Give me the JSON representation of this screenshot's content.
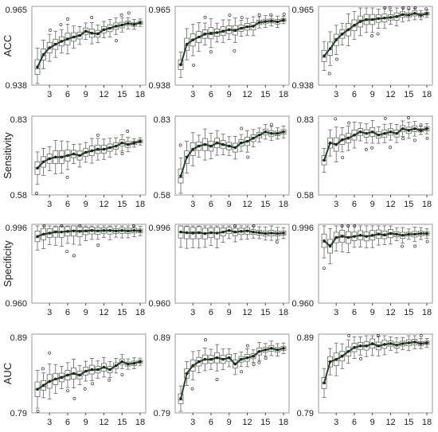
{
  "figure": {
    "colors": {
      "mean_line": "#1f4a1f",
      "mean_point": "#0f2e0f",
      "box": "#666666",
      "frame": "#9a9a9a",
      "outlier": "#333333",
      "median_accent": "#c0392b"
    },
    "rows": [
      {
        "metric": "ACC",
        "y_ticks": [
          "0.965",
          "0.938"
        ],
        "ylim": [
          0.938,
          0.965
        ]
      },
      {
        "metric": "Sensitivity",
        "y_ticks": [
          "0.83",
          "0.58"
        ],
        "ylim": [
          0.58,
          0.83
        ]
      },
      {
        "metric": "Specificity",
        "y_ticks": [
          "0.996",
          "0.960"
        ],
        "ylim": [
          0.96,
          0.996
        ]
      },
      {
        "metric": "AUC",
        "y_ticks": [
          "0.89",
          "0.79"
        ],
        "ylim": [
          0.79,
          0.89
        ]
      }
    ],
    "x_ticks": [
      "3",
      "6",
      "9",
      "12",
      "15",
      "18"
    ]
  },
  "chart_data": [
    {
      "type": "box",
      "row": 0,
      "col": 0,
      "ylabel": "ACC",
      "x": [
        1,
        2,
        3,
        4,
        5,
        6,
        7,
        8,
        9,
        10,
        11,
        12,
        13,
        14,
        15,
        16,
        17,
        18
      ],
      "ylim": [
        0.938,
        0.965
      ],
      "mean": [
        0.9442,
        0.9485,
        0.9508,
        0.952,
        0.953,
        0.9538,
        0.9545,
        0.955,
        0.9565,
        0.9558,
        0.9556,
        0.957,
        0.9575,
        0.9582,
        0.9586,
        0.9592,
        0.9588,
        0.9594
      ]
    },
    {
      "type": "box",
      "row": 0,
      "col": 1,
      "ylabel": "",
      "x": [
        1,
        2,
        3,
        4,
        5,
        6,
        7,
        8,
        9,
        10,
        11,
        12,
        13,
        14,
        15,
        16,
        17,
        18
      ],
      "ylim": [
        0.938,
        0.965
      ],
      "mean": [
        0.945,
        0.952,
        0.9535,
        0.9545,
        0.9555,
        0.9558,
        0.956,
        0.9565,
        0.957,
        0.9568,
        0.9575,
        0.958,
        0.9582,
        0.9595,
        0.9598,
        0.96,
        0.9597,
        0.9603
      ]
    },
    {
      "type": "box",
      "row": 0,
      "col": 2,
      "ylabel": "",
      "x": [
        1,
        2,
        3,
        4,
        5,
        6,
        7,
        8,
        9,
        10,
        11,
        12,
        13,
        14,
        15,
        16,
        17,
        18
      ],
      "ylim": [
        0.938,
        0.965
      ],
      "mean": [
        0.948,
        0.9505,
        0.9535,
        0.9555,
        0.957,
        0.9585,
        0.9598,
        0.9605,
        0.9605,
        0.9608,
        0.961,
        0.9612,
        0.9615,
        0.9622,
        0.962,
        0.9626,
        0.962,
        0.9625
      ]
    },
    {
      "type": "box",
      "row": 1,
      "col": 0,
      "ylabel": "Sensitivity",
      "x": [
        1,
        2,
        3,
        4,
        5,
        6,
        7,
        8,
        9,
        10,
        11,
        12,
        13,
        14,
        15,
        16,
        17,
        18
      ],
      "ylim": [
        0.58,
        0.83
      ],
      "mean": [
        0.665,
        0.685,
        0.695,
        0.7,
        0.7,
        0.705,
        0.71,
        0.705,
        0.715,
        0.72,
        0.725,
        0.725,
        0.73,
        0.735,
        0.745,
        0.74,
        0.745,
        0.75
      ]
    },
    {
      "type": "box",
      "row": 1,
      "col": 1,
      "ylabel": "",
      "x": [
        1,
        2,
        3,
        4,
        5,
        6,
        7,
        8,
        9,
        10,
        11,
        12,
        13,
        14,
        15,
        16,
        17,
        18
      ],
      "ylim": [
        0.58,
        0.83
      ],
      "mean": [
        0.64,
        0.7,
        0.725,
        0.735,
        0.74,
        0.735,
        0.745,
        0.74,
        0.735,
        0.73,
        0.745,
        0.75,
        0.76,
        0.77,
        0.78,
        0.775,
        0.775,
        0.78
      ]
    },
    {
      "type": "box",
      "row": 1,
      "col": 2,
      "ylabel": "",
      "x": [
        1,
        2,
        3,
        4,
        5,
        6,
        7,
        8,
        9,
        10,
        11,
        12,
        13,
        14,
        15,
        16,
        17,
        18
      ],
      "ylim": [
        0.58,
        0.83
      ],
      "mean": [
        0.69,
        0.745,
        0.74,
        0.755,
        0.76,
        0.77,
        0.78,
        0.775,
        0.78,
        0.77,
        0.775,
        0.78,
        0.775,
        0.79,
        0.785,
        0.79,
        0.785,
        0.79
      ]
    },
    {
      "type": "box",
      "row": 2,
      "col": 0,
      "ylabel": "Specificity",
      "x": [
        1,
        2,
        3,
        4,
        5,
        6,
        7,
        8,
        9,
        10,
        11,
        12,
        13,
        14,
        15,
        16,
        17,
        18
      ],
      "ylim": [
        0.96,
        0.996
      ],
      "mean": [
        0.9905,
        0.9915,
        0.992,
        0.9925,
        0.9925,
        0.9928,
        0.993,
        0.9928,
        0.993,
        0.9932,
        0.993,
        0.9932,
        0.9932,
        0.993,
        0.9932,
        0.993,
        0.9932,
        0.993
      ]
    },
    {
      "type": "box",
      "row": 2,
      "col": 1,
      "ylabel": "",
      "x": [
        1,
        2,
        3,
        4,
        5,
        6,
        7,
        8,
        9,
        10,
        11,
        12,
        13,
        14,
        15,
        16,
        17,
        18
      ],
      "ylim": [
        0.96,
        0.996
      ],
      "mean": [
        0.9925,
        0.9922,
        0.992,
        0.9922,
        0.9918,
        0.9922,
        0.992,
        0.9925,
        0.9932,
        0.9925,
        0.9928,
        0.993,
        0.9925,
        0.9922,
        0.9918,
        0.992,
        0.9918,
        0.992
      ]
    },
    {
      "type": "box",
      "row": 2,
      "col": 2,
      "ylabel": "",
      "x": [
        1,
        2,
        3,
        4,
        5,
        6,
        7,
        8,
        9,
        10,
        11,
        12,
        13,
        14,
        15,
        16,
        17,
        18
      ],
      "ylim": [
        0.96,
        0.996
      ],
      "mean": [
        0.9885,
        0.986,
        0.99,
        0.9905,
        0.99,
        0.9905,
        0.991,
        0.9905,
        0.991,
        0.9915,
        0.9912,
        0.9918,
        0.9915,
        0.991,
        0.9915,
        0.9915,
        0.9918,
        0.9918
      ]
    },
    {
      "type": "box",
      "row": 3,
      "col": 0,
      "ylabel": "AUC",
      "x": [
        1,
        2,
        3,
        4,
        5,
        6,
        7,
        8,
        9,
        10,
        11,
        12,
        13,
        14,
        15,
        16,
        17,
        18
      ],
      "ylim": [
        0.79,
        0.89
      ],
      "mean": [
        0.82,
        0.825,
        0.83,
        0.833,
        0.835,
        0.838,
        0.84,
        0.838,
        0.843,
        0.845,
        0.845,
        0.848,
        0.845,
        0.85,
        0.855,
        0.852,
        0.853,
        0.855
      ]
    },
    {
      "type": "box",
      "row": 3,
      "col": 1,
      "ylabel": "",
      "x": [
        1,
        2,
        3,
        4,
        5,
        6,
        7,
        8,
        9,
        10,
        11,
        12,
        13,
        14,
        15,
        16,
        17,
        18
      ],
      "ylim": [
        0.79,
        0.89
      ],
      "mean": [
        0.808,
        0.84,
        0.85,
        0.855,
        0.858,
        0.858,
        0.86,
        0.858,
        0.86,
        0.852,
        0.858,
        0.86,
        0.862,
        0.868,
        0.87,
        0.872,
        0.87,
        0.872
      ]
    },
    {
      "type": "box",
      "row": 3,
      "col": 2,
      "ylabel": "",
      "x": [
        1,
        2,
        3,
        4,
        5,
        6,
        7,
        8,
        9,
        10,
        11,
        12,
        13,
        14,
        15,
        16,
        17,
        18
      ],
      "ylim": [
        0.79,
        0.89
      ],
      "mean": [
        0.828,
        0.855,
        0.858,
        0.862,
        0.868,
        0.873,
        0.875,
        0.875,
        0.878,
        0.875,
        0.877,
        0.878,
        0.876,
        0.878,
        0.879,
        0.88,
        0.878,
        0.879
      ]
    }
  ]
}
